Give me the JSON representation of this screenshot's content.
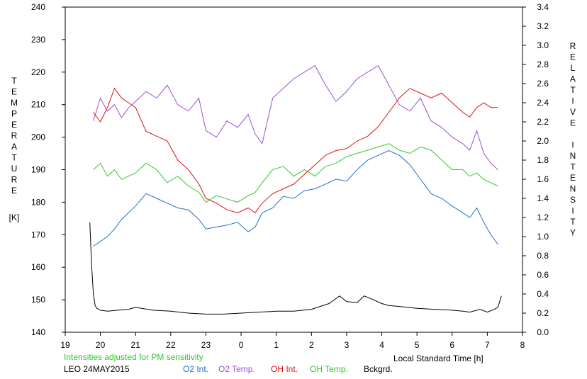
{
  "chart_data": {
    "type": "line",
    "left_axis_label": "TEMPERATURE",
    "left_axis_unit": "[K]",
    "right_axis_label": "RELATIVE INTENSITY",
    "xlabel": "Local Standard Time [h]",
    "note": "Intensities adjusted for PM sensitivity",
    "station": "LEO 24MAY2015",
    "grid": false,
    "x_ticks": [
      "19",
      "20",
      "21",
      "22",
      "23",
      "0",
      "1",
      "2",
      "3",
      "4",
      "5",
      "6",
      "7",
      "8"
    ],
    "xlim": [
      19,
      32
    ],
    "ylim_left": [
      140,
      240
    ],
    "ylim_right": [
      0,
      3.4
    ],
    "left_ticks": [
      140,
      150,
      160,
      170,
      180,
      190,
      200,
      210,
      220,
      230,
      240
    ],
    "right_ticks": [
      "0.0",
      "0.2",
      "0.4",
      "0.6",
      "0.8",
      "1.0",
      "1.2",
      "1.4",
      "1.6",
      "1.8",
      "2.0",
      "2.2",
      "2.4",
      "2.6",
      "2.8",
      "3.0",
      "3.2",
      "3.4"
    ],
    "series": [
      {
        "name": "O2 Int.",
        "color": "#1f6fd0",
        "axis": "right",
        "x": [
          19.8,
          20.0,
          20.2,
          20.4,
          20.6,
          20.8,
          21.0,
          21.3,
          21.6,
          21.9,
          22.2,
          22.5,
          22.8,
          23.0,
          23.3,
          23.6,
          23.9,
          24.2,
          24.4,
          24.6,
          24.9,
          25.2,
          25.5,
          25.8,
          26.1,
          26.4,
          26.7,
          27.0,
          27.3,
          27.6,
          27.9,
          28.2,
          28.5,
          28.8,
          29.1,
          29.4,
          29.7,
          30.0,
          30.3,
          30.5,
          30.7,
          30.9,
          31.1,
          31.3
        ],
        "y": [
          0.9,
          0.95,
          1.0,
          1.08,
          1.18,
          1.25,
          1.32,
          1.45,
          1.4,
          1.35,
          1.3,
          1.28,
          1.18,
          1.08,
          1.1,
          1.12,
          1.15,
          1.05,
          1.1,
          1.25,
          1.3,
          1.42,
          1.4,
          1.48,
          1.5,
          1.55,
          1.6,
          1.58,
          1.7,
          1.8,
          1.85,
          1.9,
          1.85,
          1.75,
          1.6,
          1.45,
          1.4,
          1.32,
          1.25,
          1.2,
          1.3,
          1.15,
          1.02,
          0.92
        ]
      },
      {
        "name": "O2 Temp.",
        "color": "#9b4ed6",
        "axis": "left",
        "x": [
          19.8,
          20.0,
          20.2,
          20.4,
          20.6,
          20.8,
          21.0,
          21.3,
          21.6,
          21.9,
          22.2,
          22.5,
          22.8,
          23.0,
          23.3,
          23.6,
          23.9,
          24.2,
          24.4,
          24.6,
          24.9,
          25.2,
          25.5,
          25.8,
          26.1,
          26.4,
          26.7,
          27.0,
          27.3,
          27.6,
          27.9,
          28.2,
          28.5,
          28.8,
          29.1,
          29.4,
          29.7,
          30.0,
          30.3,
          30.5,
          30.7,
          30.9,
          31.1,
          31.3
        ],
        "y": [
          205,
          212,
          208,
          210,
          206,
          209,
          211,
          214,
          212,
          216,
          210,
          208,
          212,
          202,
          200,
          205,
          203,
          207,
          201,
          198,
          212,
          215,
          218,
          220,
          222,
          216,
          211,
          214,
          218,
          220,
          222,
          216,
          210,
          208,
          212,
          205,
          203,
          200,
          198,
          196,
          202,
          195,
          192,
          190
        ]
      },
      {
        "name": "OH Int.",
        "color": "#e01010",
        "axis": "right",
        "x": [
          19.8,
          20.0,
          20.2,
          20.4,
          20.6,
          20.8,
          21.0,
          21.3,
          21.6,
          21.9,
          22.2,
          22.5,
          22.8,
          23.0,
          23.3,
          23.6,
          23.9,
          24.2,
          24.4,
          24.6,
          24.9,
          25.2,
          25.5,
          25.8,
          26.1,
          26.4,
          26.7,
          27.0,
          27.3,
          27.6,
          27.9,
          28.2,
          28.5,
          28.8,
          29.1,
          29.4,
          29.7,
          30.0,
          30.3,
          30.5,
          30.7,
          30.9,
          31.1,
          31.3
        ],
        "y": [
          2.3,
          2.2,
          2.35,
          2.55,
          2.45,
          2.4,
          2.35,
          2.1,
          2.05,
          2.0,
          1.8,
          1.7,
          1.55,
          1.4,
          1.35,
          1.28,
          1.25,
          1.3,
          1.25,
          1.35,
          1.45,
          1.5,
          1.55,
          1.65,
          1.75,
          1.85,
          1.9,
          1.92,
          2.0,
          2.05,
          2.15,
          2.3,
          2.45,
          2.55,
          2.5,
          2.45,
          2.5,
          2.4,
          2.3,
          2.25,
          2.35,
          2.4,
          2.35,
          2.35
        ]
      },
      {
        "name": "OH Temp.",
        "color": "#2ec82e",
        "axis": "left",
        "x": [
          19.8,
          20.0,
          20.2,
          20.4,
          20.6,
          20.8,
          21.0,
          21.3,
          21.6,
          21.9,
          22.2,
          22.5,
          22.8,
          23.0,
          23.3,
          23.6,
          23.9,
          24.2,
          24.4,
          24.6,
          24.9,
          25.2,
          25.5,
          25.8,
          26.1,
          26.4,
          26.7,
          27.0,
          27.3,
          27.6,
          27.9,
          28.2,
          28.5,
          28.8,
          29.1,
          29.4,
          29.7,
          30.0,
          30.3,
          30.5,
          30.7,
          30.9,
          31.1,
          31.3
        ],
        "y": [
          190,
          192,
          188,
          190,
          187,
          188,
          189,
          192,
          190,
          186,
          188,
          185,
          183,
          180,
          182,
          181,
          180,
          182,
          183,
          186,
          190,
          191,
          188,
          190,
          188,
          191,
          192,
          194,
          195,
          196,
          197,
          198,
          196,
          195,
          197,
          196,
          193,
          190,
          190,
          188,
          189,
          187,
          186,
          185
        ]
      },
      {
        "name": "Bckgrd.",
        "color": "#000000",
        "axis": "right",
        "x": [
          19.7,
          19.75,
          19.8,
          19.85,
          19.9,
          20.0,
          20.2,
          20.5,
          20.8,
          21.0,
          21.5,
          22.0,
          22.5,
          23.0,
          23.5,
          24.0,
          24.5,
          25.0,
          25.5,
          26.0,
          26.5,
          26.8,
          27.0,
          27.3,
          27.5,
          27.7,
          28.0,
          28.2,
          28.5,
          29.0,
          29.5,
          30.0,
          30.3,
          30.5,
          30.8,
          31.0,
          31.2,
          31.3,
          31.4
        ],
        "y": [
          1.15,
          0.7,
          0.4,
          0.28,
          0.25,
          0.23,
          0.22,
          0.23,
          0.24,
          0.26,
          0.23,
          0.22,
          0.2,
          0.19,
          0.19,
          0.2,
          0.21,
          0.22,
          0.22,
          0.24,
          0.3,
          0.38,
          0.32,
          0.31,
          0.38,
          0.35,
          0.3,
          0.28,
          0.27,
          0.25,
          0.24,
          0.23,
          0.22,
          0.21,
          0.24,
          0.21,
          0.24,
          0.26,
          0.38
        ]
      }
    ]
  }
}
